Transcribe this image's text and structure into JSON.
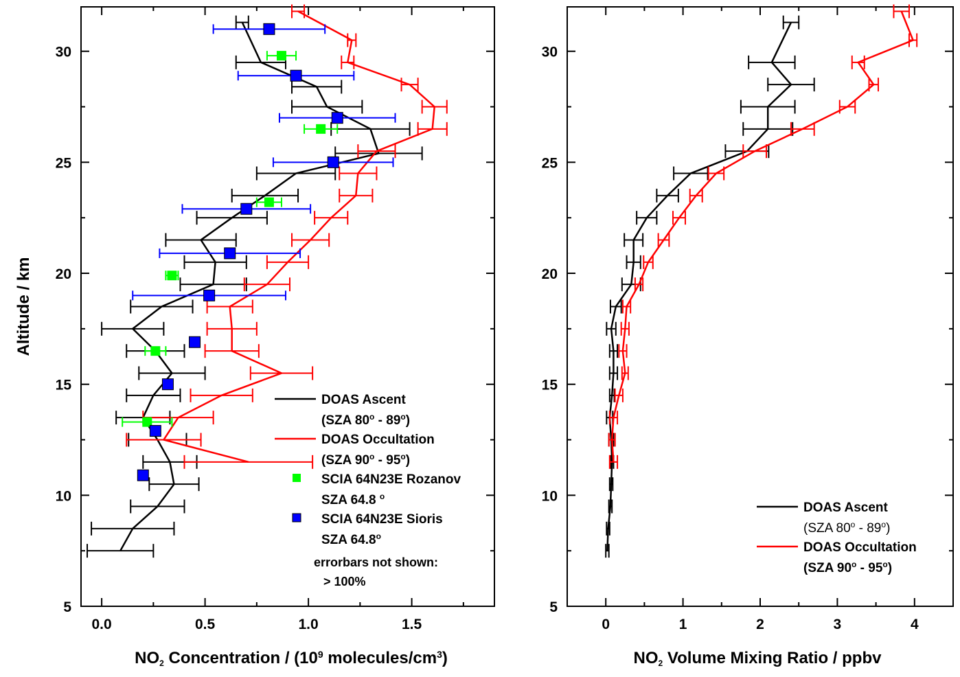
{
  "chart_data": [
    {
      "type": "line",
      "title": "",
      "xlabel": {
        "pre": "NO",
        "sub": "2",
        "mid": " Concentration / (10",
        "sup": "9",
        "post": " molecules/cm",
        "sup2": "3",
        "close": ")"
      },
      "ylabel": "Altitude / km",
      "xlim": [
        -0.1,
        1.9
      ],
      "ylim": [
        5,
        32
      ],
      "xticks": [
        0.0,
        0.5,
        1.0,
        1.5
      ],
      "xtick_labels": [
        "0.0",
        "0.5",
        "1.0",
        "1.5"
      ],
      "yticks": [
        5,
        10,
        15,
        20,
        25,
        30
      ],
      "ytick_labels": [
        "5",
        "10",
        "15",
        "20",
        "25",
        "30"
      ],
      "series": [
        {
          "name": "DOAS Ascent",
          "color": "#000000",
          "kind": "line",
          "points": [
            {
              "y": 31.3,
              "x": 0.68,
              "err": 0.03
            },
            {
              "y": 29.5,
              "x": 0.77,
              "err": 0.12
            },
            {
              "y": 28.4,
              "x": 1.04,
              "err": 0.12
            },
            {
              "y": 27.5,
              "x": 1.09,
              "err": 0.17
            },
            {
              "y": 26.5,
              "x": 1.3,
              "err": 0.19
            },
            {
              "y": 25.4,
              "x": 1.34,
              "err": 0.21
            },
            {
              "y": 24.5,
              "x": 0.94,
              "err": 0.19
            },
            {
              "y": 23.5,
              "x": 0.79,
              "err": 0.16
            },
            {
              "y": 22.5,
              "x": 0.63,
              "err": 0.17
            },
            {
              "y": 21.5,
              "x": 0.48,
              "err": 0.17
            },
            {
              "y": 20.5,
              "x": 0.55,
              "err": 0.15
            },
            {
              "y": 19.5,
              "x": 0.54,
              "err": 0.16
            },
            {
              "y": 18.5,
              "x": 0.29,
              "err": 0.15
            },
            {
              "y": 17.5,
              "x": 0.15,
              "err": 0.15
            },
            {
              "y": 16.5,
              "x": 0.26,
              "err": 0.14
            },
            {
              "y": 15.5,
              "x": 0.34,
              "err": 0.16
            },
            {
              "y": 14.5,
              "x": 0.25,
              "err": 0.13
            },
            {
              "y": 13.5,
              "x": 0.2,
              "err": 0.13
            },
            {
              "y": 12.5,
              "x": 0.27,
              "err": 0.14
            },
            {
              "y": 11.5,
              "x": 0.33,
              "err": 0.13
            },
            {
              "y": 10.5,
              "x": 0.35,
              "err": 0.12
            },
            {
              "y": 9.5,
              "x": 0.27,
              "err": 0.13
            },
            {
              "y": 8.5,
              "x": 0.15,
              "err": 0.2
            },
            {
              "y": 7.5,
              "x": 0.09,
              "err": 0.16
            }
          ]
        },
        {
          "name": "DOAS Occultation",
          "color": "#ff0000",
          "kind": "line",
          "points": [
            {
              "y": 31.8,
              "x": 0.95,
              "err": 0.03
            },
            {
              "y": 30.5,
              "x": 1.21,
              "err": 0.02
            },
            {
              "y": 29.5,
              "x": 1.19,
              "err": 0.03
            },
            {
              "y": 28.5,
              "x": 1.49,
              "err": 0.04
            },
            {
              "y": 27.5,
              "x": 1.61,
              "err": 0.06
            },
            {
              "y": 26.5,
              "x": 1.6,
              "err": 0.07
            },
            {
              "y": 25.5,
              "x": 1.33,
              "err": 0.09
            },
            {
              "y": 24.5,
              "x": 1.24,
              "err": 0.09
            },
            {
              "y": 23.5,
              "x": 1.23,
              "err": 0.08
            },
            {
              "y": 22.5,
              "x": 1.11,
              "err": 0.08
            },
            {
              "y": 21.5,
              "x": 1.01,
              "err": 0.09
            },
            {
              "y": 20.5,
              "x": 0.9,
              "err": 0.1
            },
            {
              "y": 19.5,
              "x": 0.8,
              "err": 0.11
            },
            {
              "y": 18.5,
              "x": 0.62,
              "err": 0.11
            },
            {
              "y": 17.5,
              "x": 0.63,
              "err": 0.12
            },
            {
              "y": 16.5,
              "x": 0.63,
              "err": 0.13
            },
            {
              "y": 15.5,
              "x": 0.87,
              "err": 0.15
            },
            {
              "y": 14.5,
              "x": 0.58,
              "err": 0.15
            },
            {
              "y": 13.5,
              "x": 0.37,
              "err": 0.17
            },
            {
              "y": 12.5,
              "x": 0.3,
              "err": 0.18
            },
            {
              "y": 11.5,
              "x": 0.71,
              "err": 0.31
            }
          ]
        },
        {
          "name": "SCIA 64N23E Rozanov",
          "color": "#00ff00",
          "kind": "marker",
          "points": [
            {
              "y": 29.8,
              "x": 0.87,
              "err": 0.07
            },
            {
              "y": 26.5,
              "x": 1.06,
              "err": 0.08
            },
            {
              "y": 23.2,
              "x": 0.81,
              "err": 0.06
            },
            {
              "y": 19.9,
              "x": 0.34,
              "err": 0.03
            },
            {
              "y": 16.5,
              "x": 0.26,
              "err": 0.05
            },
            {
              "y": 13.3,
              "x": 0.22,
              "err": 0.12
            }
          ]
        },
        {
          "name": "SCIA 64N23E Sioris",
          "color": "#0000ff",
          "kind": "marker",
          "points": [
            {
              "y": 31.0,
              "x": 0.81,
              "err": 0.27
            },
            {
              "y": 28.9,
              "x": 0.94,
              "err": 0.28
            },
            {
              "y": 27.0,
              "x": 1.14,
              "err": 0.28
            },
            {
              "y": 25.0,
              "x": 1.12,
              "err": 0.29
            },
            {
              "y": 22.9,
              "x": 0.7,
              "err": 0.31
            },
            {
              "y": 20.9,
              "x": 0.62,
              "err": 0.34
            },
            {
              "y": 19.0,
              "x": 0.52,
              "err": 0.37
            },
            {
              "y": 16.9,
              "x": 0.45,
              "err": null
            },
            {
              "y": 15.0,
              "x": 0.32,
              "err": null
            },
            {
              "y": 12.9,
              "x": 0.26,
              "err": null
            },
            {
              "y": 10.9,
              "x": 0.2,
              "err": null
            }
          ]
        }
      ],
      "legend": {
        "placement": "bottom-right",
        "entries": [
          {
            "series": 0,
            "line1": "DOAS Ascent",
            "line2": {
              "pre": "(SZA 80",
              "sup1": "o",
              "mid": " - 89",
              "sup2": "o",
              "post": ")"
            }
          },
          {
            "series": 1,
            "line1": "DOAS Occultation",
            "line2": {
              "pre": "(SZA 90",
              "sup1": "o",
              "mid": " - 95",
              "sup2": "o",
              "post": ")"
            }
          },
          {
            "series": 2,
            "line1": "SCIA 64N23E Rozanov",
            "line2": {
              "pre": "SZA 64.8 ",
              "sup1": "o",
              "mid": "",
              "sup2": "",
              "post": ""
            }
          },
          {
            "series": 3,
            "line1": "SCIA 64N23E Sioris",
            "line2": {
              "pre": "SZA 64.8",
              "sup1": "o",
              "mid": "",
              "sup2": "",
              "post": ""
            }
          }
        ],
        "note_line1": "errorbars not shown:",
        "note_line2": "> 100%"
      }
    },
    {
      "type": "line",
      "title": "",
      "xlabel": {
        "pre": "NO",
        "sub": "2",
        "mid": " Volume Mixing Ratio / ppbv",
        "sup": "",
        "post": "",
        "sup2": "",
        "close": ""
      },
      "ylabel": "",
      "xlim": [
        -0.5,
        4.5
      ],
      "ylim": [
        5,
        32
      ],
      "xticks": [
        0,
        1,
        2,
        3,
        4
      ],
      "xtick_labels": [
        "0",
        "1",
        "2",
        "3",
        "4"
      ],
      "yticks": [
        5,
        10,
        15,
        20,
        25,
        30
      ],
      "ytick_labels": [
        "5",
        "10",
        "15",
        "20",
        "25",
        "30"
      ],
      "series": [
        {
          "name": "DOAS Ascent",
          "color": "#000000",
          "kind": "line",
          "points": [
            {
              "y": 31.3,
              "x": 2.4,
              "err": 0.1
            },
            {
              "y": 29.5,
              "x": 2.15,
              "err": 0.3
            },
            {
              "y": 28.5,
              "x": 2.4,
              "err": 0.3
            },
            {
              "y": 27.5,
              "x": 2.1,
              "err": 0.35
            },
            {
              "y": 26.5,
              "x": 2.1,
              "err": 0.32
            },
            {
              "y": 25.5,
              "x": 1.83,
              "err": 0.28
            },
            {
              "y": 24.5,
              "x": 1.1,
              "err": 0.22
            },
            {
              "y": 23.5,
              "x": 0.8,
              "err": 0.14
            },
            {
              "y": 22.5,
              "x": 0.53,
              "err": 0.13
            },
            {
              "y": 21.5,
              "x": 0.36,
              "err": 0.12
            },
            {
              "y": 20.5,
              "x": 0.36,
              "err": 0.09
            },
            {
              "y": 19.5,
              "x": 0.33,
              "err": 0.12
            },
            {
              "y": 18.5,
              "x": 0.13,
              "err": 0.07
            },
            {
              "y": 17.5,
              "x": 0.07,
              "err": 0.06
            },
            {
              "y": 16.5,
              "x": 0.1,
              "err": 0.05
            },
            {
              "y": 15.5,
              "x": 0.1,
              "err": 0.05
            },
            {
              "y": 14.5,
              "x": 0.08,
              "err": 0.03
            },
            {
              "y": 13.5,
              "x": 0.05,
              "err": 0.04
            },
            {
              "y": 12.5,
              "x": 0.07,
              "err": 0.03
            },
            {
              "y": 11.5,
              "x": 0.08,
              "err": 0.02
            },
            {
              "y": 10.5,
              "x": 0.07,
              "err": 0.02
            },
            {
              "y": 9.5,
              "x": 0.06,
              "err": 0.02
            },
            {
              "y": 8.5,
              "x": 0.03,
              "err": 0.02
            },
            {
              "y": 7.5,
              "x": 0.02,
              "err": 0.02
            }
          ]
        },
        {
          "name": "DOAS Occultation",
          "color": "#ff0000",
          "kind": "line",
          "points": [
            {
              "y": 31.8,
              "x": 3.83,
              "err": 0.1
            },
            {
              "y": 30.5,
              "x": 3.98,
              "err": 0.05
            },
            {
              "y": 29.5,
              "x": 3.27,
              "err": 0.08
            },
            {
              "y": 28.5,
              "x": 3.47,
              "err": 0.06
            },
            {
              "y": 27.5,
              "x": 3.13,
              "err": 0.1
            },
            {
              "y": 26.5,
              "x": 2.55,
              "err": 0.15
            },
            {
              "y": 25.5,
              "x": 1.93,
              "err": 0.15
            },
            {
              "y": 24.5,
              "x": 1.43,
              "err": 0.1
            },
            {
              "y": 23.5,
              "x": 1.17,
              "err": 0.08
            },
            {
              "y": 22.5,
              "x": 0.95,
              "err": 0.08
            },
            {
              "y": 21.5,
              "x": 0.75,
              "err": 0.07
            },
            {
              "y": 20.5,
              "x": 0.55,
              "err": 0.06
            },
            {
              "y": 19.5,
              "x": 0.43,
              "err": 0.05
            },
            {
              "y": 18.5,
              "x": 0.27,
              "err": 0.05
            },
            {
              "y": 17.5,
              "x": 0.25,
              "err": 0.05
            },
            {
              "y": 16.5,
              "x": 0.22,
              "err": 0.05
            },
            {
              "y": 15.5,
              "x": 0.25,
              "err": 0.04
            },
            {
              "y": 14.5,
              "x": 0.17,
              "err": 0.05
            },
            {
              "y": 13.5,
              "x": 0.1,
              "err": 0.05
            },
            {
              "y": 12.5,
              "x": 0.08,
              "err": 0.04
            },
            {
              "y": 11.5,
              "x": 0.1,
              "err": 0.05
            }
          ]
        }
      ],
      "legend": {
        "placement": "bottom-right",
        "entries": [
          {
            "series": 0,
            "line1": "DOAS Ascent",
            "line2": {
              "pre": "(SZA 80",
              "sup1": "o",
              "mid": " - 89",
              "sup2": "o",
              "post": ")"
            }
          },
          {
            "series": 1,
            "line1": "DOAS Occultation",
            "line2": {
              "pre": "(SZA 90",
              "sup1": "o",
              "mid": " - 95",
              "sup2": "o",
              "post": ")"
            }
          }
        ],
        "note_line1": "",
        "note_line2": ""
      }
    }
  ]
}
